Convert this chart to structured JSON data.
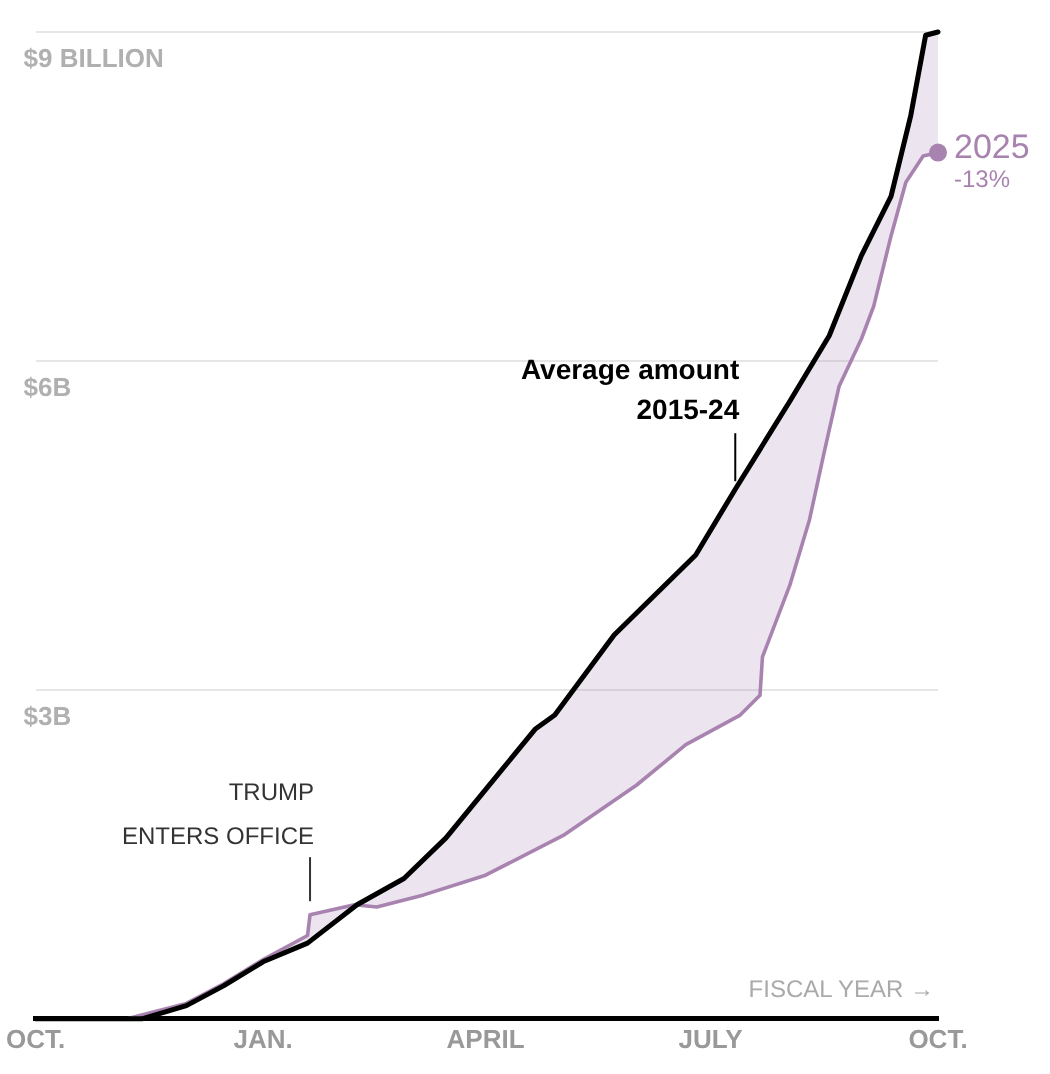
{
  "chart_data": {
    "type": "line",
    "xlim": [
      "2024-10-01",
      "2025-10-01"
    ],
    "xticks": [
      {
        "value": "2024-10-01",
        "label": "OCT."
      },
      {
        "value": "2025-01-01",
        "label": "JAN."
      },
      {
        "value": "2025-04-01",
        "label": "APRIL"
      },
      {
        "value": "2025-07-01",
        "label": "JULY"
      },
      {
        "value": "2025-10-01",
        "label": "OCT."
      }
    ],
    "ylim": [
      0,
      9
    ],
    "yticks": [
      {
        "value": 0,
        "label": null
      },
      {
        "value": 3,
        "label": "$3B"
      },
      {
        "value": 6,
        "label": "$6B"
      },
      {
        "value": 9,
        "label": "$9 BILLION"
      }
    ],
    "grid": "y",
    "legend": false,
    "marker": "none",
    "line_style": "solid",
    "series": [
      {
        "name": "Average amount\n2015-24",
        "color": "#000000",
        "x": [
          "2024-10-01",
          "2024-11-13",
          "2024-12-01",
          "2024-12-16",
          "2025-01-01",
          "2025-01-19",
          "2025-02-08",
          "2025-02-27",
          "2025-03-16",
          "2025-04-01",
          "2025-04-21",
          "2025-04-29",
          "2025-05-23",
          "2025-06-25",
          "2025-07-11",
          "2025-08-02",
          "2025-08-18",
          "2025-08-31",
          "2025-09-12",
          "2025-09-20",
          "2025-09-26",
          "2025-10-01"
        ],
        "values": [
          0,
          0,
          0.12,
          0.3,
          0.52,
          0.69,
          1.04,
          1.28,
          1.65,
          2.09,
          2.64,
          2.77,
          3.5,
          4.23,
          4.83,
          5.63,
          6.23,
          6.96,
          7.5,
          8.24,
          8.97,
          9
        ]
      },
      {
        "name": "2025",
        "color": "#a883b0",
        "x": [
          "2024-10-01",
          "2024-11-07",
          "2024-12-01",
          "2024-12-16",
          "2025-01-01",
          "2025-01-19",
          "2025-01-20",
          "2025-02-07",
          "2025-02-16",
          "2025-03-07",
          "2025-04-01",
          "2025-05-03",
          "2025-06-01",
          "2025-06-21",
          "2025-07-13",
          "2025-07-21",
          "2025-07-22",
          "2025-08-02",
          "2025-08-10",
          "2025-08-16",
          "2025-08-22",
          "2025-08-31",
          "2025-09-05",
          "2025-09-12",
          "2025-09-18",
          "2025-09-25",
          "2025-10-01"
        ],
        "values": [
          0,
          0,
          0.14,
          0.32,
          0.54,
          0.76,
          0.95,
          1.04,
          1.02,
          1.13,
          1.31,
          1.68,
          2.13,
          2.5,
          2.77,
          2.95,
          3.3,
          3.95,
          4.55,
          5.17,
          5.77,
          6.2,
          6.5,
          7.14,
          7.63,
          7.87,
          7.9
        ]
      }
    ],
    "annotations": [
      {
        "text": "TRUMP\nENTERS OFFICE",
        "x": "2025-01-20",
        "y": 1.0
      },
      {
        "text": "-13%",
        "x": "2025-10-01",
        "y": 7.9
      },
      "FISCAL YEAR →"
    ]
  }
}
